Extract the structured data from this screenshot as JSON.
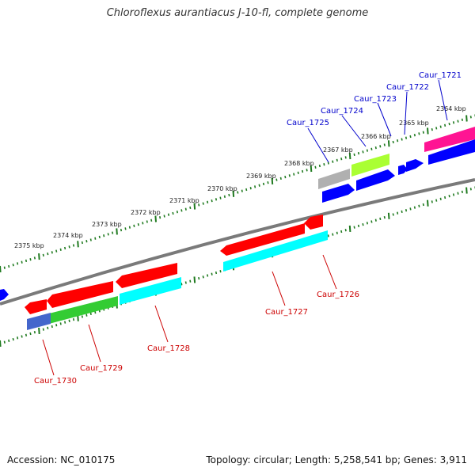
{
  "title": "Chloroflexus aurantiacus J-10-fl, complete genome",
  "footer": {
    "accession": "Accession: NC_010175",
    "summary": "Topology: circular; Length: 5,258,541 bp; Genes: 3,911"
  },
  "colors": {
    "backbone": "#7a7a7a",
    "tick": "#1f7a1f",
    "label_top": "#0000cc",
    "label_bottom": "#cc0000"
  },
  "ticks": [
    {
      "label": "2364 kbp"
    },
    {
      "label": "2365 kbp"
    },
    {
      "label": "2366 kbp"
    },
    {
      "label": "2367 kbp"
    },
    {
      "label": "2368 kbp"
    },
    {
      "label": "2369 kbp"
    },
    {
      "label": "2370 kbp"
    },
    {
      "label": "2371 kbp"
    },
    {
      "label": "2372 kbp"
    },
    {
      "label": "2373 kbp"
    },
    {
      "label": "2374 kbp"
    },
    {
      "label": "2375 kbp"
    }
  ],
  "genes_top": [
    {
      "name": "Caur_1721",
      "color": "#ff1493"
    },
    {
      "name": "Caur_1722",
      "color": "#0000ff"
    },
    {
      "name": "Caur_1723",
      "color": "#0000ff"
    },
    {
      "name": "Caur_1724",
      "color": "#aaff33"
    },
    {
      "name": "Caur_1725",
      "color": "#b0b0b0"
    }
  ],
  "genes_bottom": [
    {
      "name": "Caur_1726",
      "color": "#ff0000"
    },
    {
      "name": "Caur_1727",
      "color": "#ff0000"
    },
    {
      "name": "Caur_1728",
      "color": "#ff0000"
    },
    {
      "name": "Caur_1729",
      "color": "#ff0000"
    },
    {
      "name": "Caur_1730",
      "color": "#ff0000"
    }
  ]
}
